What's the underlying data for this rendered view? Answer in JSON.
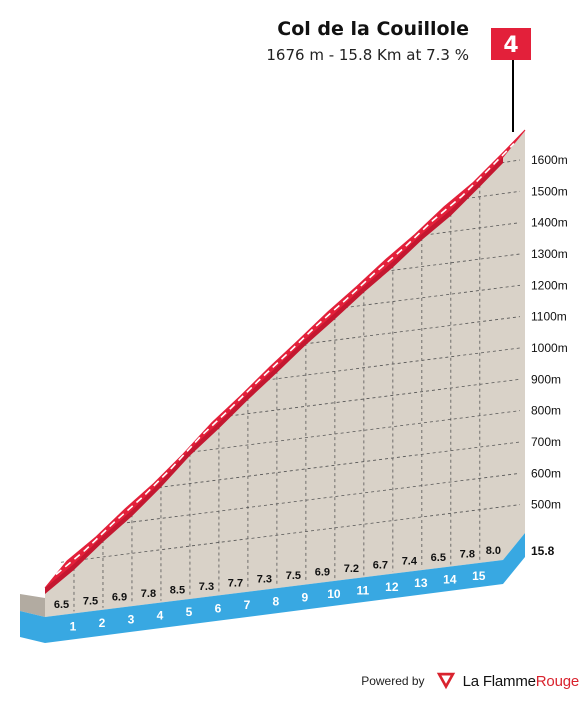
{
  "header": {
    "title": "Col de la Couillole",
    "subtitle": "1676 m - 15.8 Km at 7.3 %"
  },
  "category_badge": "4",
  "footer": {
    "powered_label": "Powered by",
    "brand_part1": "La Flamme",
    "brand_part2": "Rouge"
  },
  "colors": {
    "road": "#e3203a",
    "fill": "#d9d2c8",
    "side": "#b2aba1",
    "base": "#38a8e2",
    "grid": "#555555"
  },
  "chart_data": {
    "type": "area",
    "km_start": 0,
    "km_end": 15.8,
    "km_labels": [
      "1",
      "2",
      "3",
      "4",
      "5",
      "6",
      "7",
      "8",
      "9",
      "10",
      "11",
      "12",
      "13",
      "14",
      "15"
    ],
    "end_label": "15.8",
    "gradients": [
      6.5,
      7.5,
      6.9,
      7.8,
      8.5,
      7.3,
      7.7,
      7.3,
      7.5,
      6.9,
      7.2,
      6.7,
      7.4,
      6.5,
      7.8,
      8.0
    ],
    "gradient_labels": [
      "6.5",
      "7.5",
      "6.9",
      "7.8",
      "8.5",
      "7.3",
      "7.7",
      "7.3",
      "7.5",
      "6.9",
      "7.2",
      "6.7",
      "7.4",
      "6.5",
      "7.8",
      "8.0"
    ],
    "summit_altitude": 1676,
    "y_ticks": [
      500,
      600,
      700,
      800,
      900,
      1000,
      1100,
      1200,
      1300,
      1400,
      1500,
      1600
    ],
    "y_tick_labels": [
      "500m",
      "600m",
      "700m",
      "800m",
      "900m",
      "1000m",
      "1100m",
      "1200m",
      "1300m",
      "1400m",
      "1500m",
      "1600m"
    ],
    "ylim": [
      520,
      1700
    ]
  }
}
